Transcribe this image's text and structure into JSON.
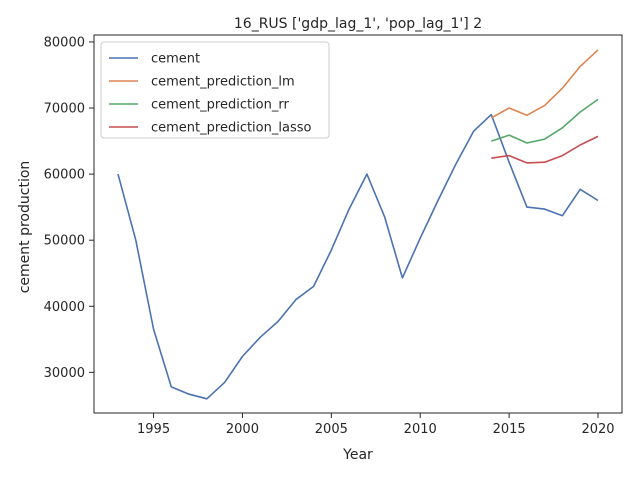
{
  "chart_data": {
    "type": "line",
    "title": "16_RUS ['gdp_lag_1', 'pop_lag_1'] 2",
    "xlabel": "Year",
    "ylabel": "cement production",
    "xlim": [
      1991.65,
      2021.35
    ],
    "ylim": [
      23850,
      81050
    ],
    "xticks": [
      1995,
      2000,
      2005,
      2010,
      2015,
      2020
    ],
    "yticks": [
      30000,
      40000,
      50000,
      60000,
      70000,
      80000
    ],
    "grid": false,
    "legend": "top-left",
    "series": [
      {
        "name": "cement",
        "color": "#4c72b0",
        "x": [
          1993,
          1994,
          1995,
          1996,
          1997,
          1998,
          1999,
          2000,
          2001,
          2002,
          2003,
          2004,
          2005,
          2006,
          2007,
          2008,
          2009,
          2010,
          2011,
          2012,
          2013,
          2014,
          2015,
          2016,
          2017,
          2018,
          2019,
          2020
        ],
        "y": [
          60000,
          50000,
          36500,
          27800,
          26700,
          26000,
          28500,
          32400,
          35300,
          37700,
          41000,
          43000,
          48500,
          54700,
          60000,
          53500,
          44300,
          50300,
          56000,
          61500,
          66500,
          69000,
          61800,
          55000,
          54700,
          53700,
          57700,
          56000
        ]
      },
      {
        "name": "cement_prediction_lm",
        "color": "#dd8452",
        "x": [
          2014,
          2015,
          2016,
          2017,
          2018,
          2019,
          2020
        ],
        "y": [
          68500,
          70000,
          68900,
          70400,
          73000,
          76300,
          78800
        ]
      },
      {
        "name": "cement_prediction_rr",
        "color": "#55a868",
        "x": [
          2014,
          2015,
          2016,
          2017,
          2018,
          2019,
          2020
        ],
        "y": [
          65000,
          65900,
          64700,
          65300,
          67000,
          69400,
          71300
        ]
      },
      {
        "name": "cement_prediction_lasso",
        "color": "#c44e52",
        "x": [
          2014,
          2015,
          2016,
          2017,
          2018,
          2019,
          2020
        ],
        "y": [
          62400,
          62800,
          61700,
          61800,
          62800,
          64400,
          65700
        ]
      }
    ]
  }
}
